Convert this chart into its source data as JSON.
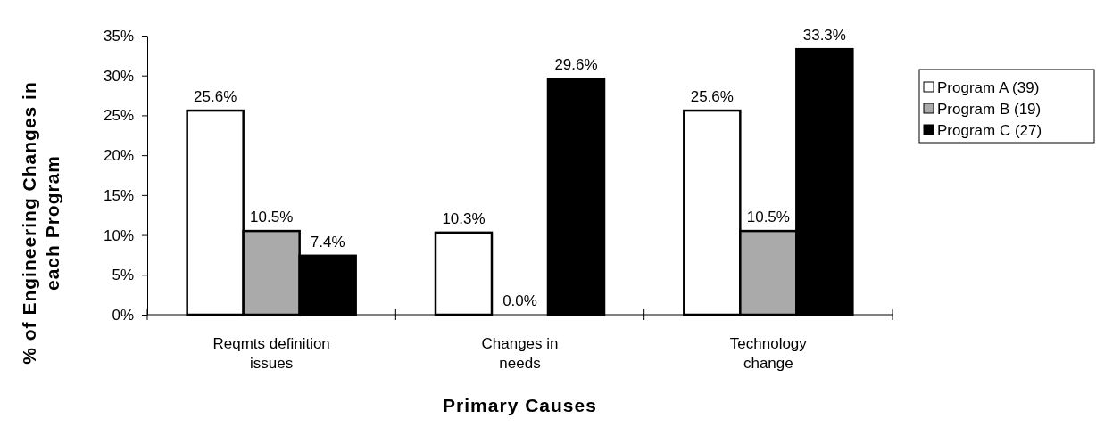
{
  "chart_data": {
    "type": "bar",
    "xlabel": "Primary Causes",
    "ylabel": "% of Engineering Changes in each Program",
    "categories": [
      "Reqmts definition issues",
      "Changes in needs",
      "Technology change"
    ],
    "series": [
      {
        "name": "Program A (39)",
        "color": "#ffffff",
        "values": [
          25.6,
          10.3,
          25.6
        ],
        "value_labels": [
          "25.6%",
          "10.3%",
          "25.6%"
        ]
      },
      {
        "name": "Program B (19)",
        "color": "#aaaaaa",
        "values": [
          10.5,
          0.0,
          10.5
        ],
        "value_labels": [
          "10.5%",
          "0.0%",
          "10.5%"
        ]
      },
      {
        "name": "Program C (27)",
        "color": "#000000",
        "values": [
          7.4,
          29.6,
          33.3
        ],
        "value_labels": [
          "7.4%",
          "29.6%",
          "33.3%"
        ]
      }
    ],
    "ylim": [
      0,
      35
    ],
    "yticks": [
      {
        "value": 0,
        "label": "0%"
      },
      {
        "value": 5,
        "label": "5%"
      },
      {
        "value": 10,
        "label": "10%"
      },
      {
        "value": 15,
        "label": "15%"
      },
      {
        "value": 20,
        "label": "20%"
      },
      {
        "value": 25,
        "label": "25%"
      },
      {
        "value": 30,
        "label": "30%"
      },
      {
        "value": 35,
        "label": "35%"
      }
    ],
    "grid": false,
    "legend": "right"
  }
}
